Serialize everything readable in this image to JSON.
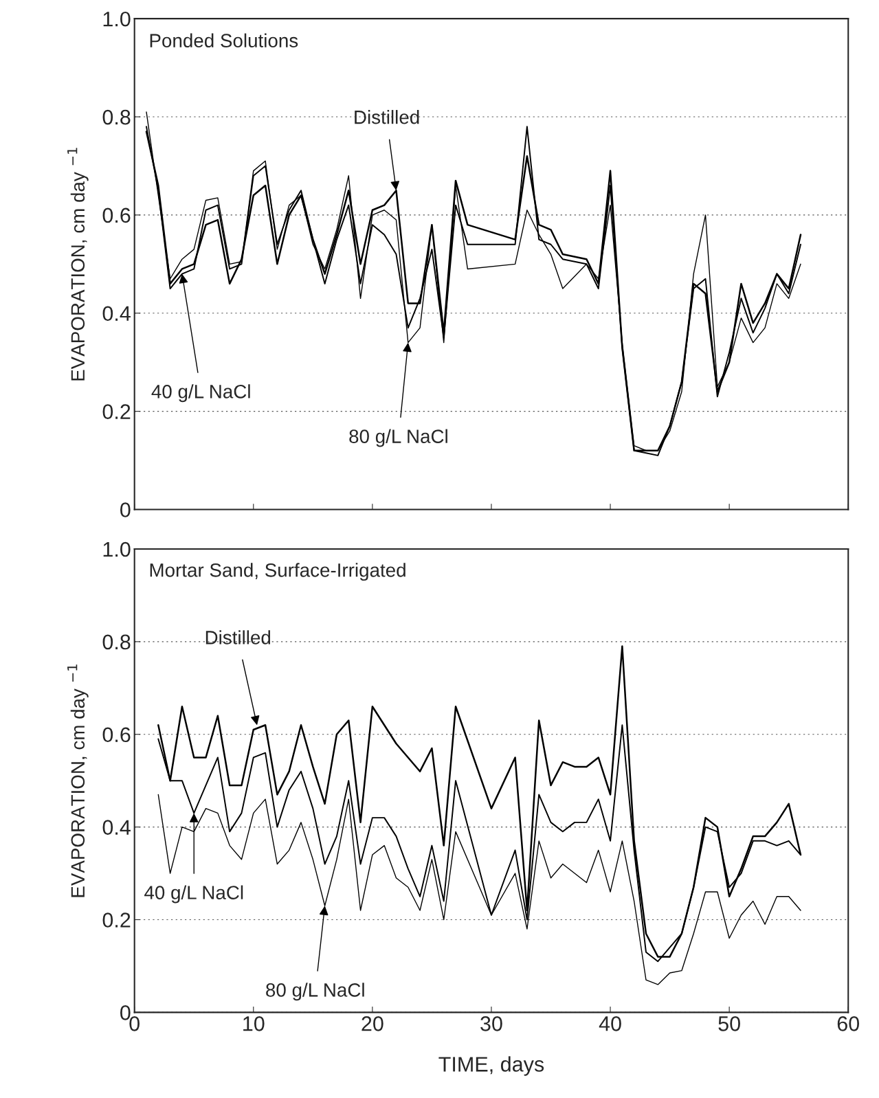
{
  "chart_data": [
    {
      "type": "line",
      "title": "Ponded Solutions",
      "ylabel": "EVAPORATION, cm day $^{−1}$",
      "xlim": [
        0,
        60
      ],
      "xticks": [
        0,
        10,
        20,
        30,
        40,
        50,
        60
      ],
      "ylim": [
        0,
        1.0
      ],
      "yticks": [
        0,
        0.2,
        0.4,
        0.6,
        0.8,
        {
          "value": 1.0,
          "label": "1.0"
        }
      ],
      "tick_labels": "y",
      "grid": "y",
      "line_style": "solid",
      "series": [
        {
          "color": "#000000",
          "x": [
            1,
            2,
            3,
            4,
            5,
            6,
            7,
            8,
            9,
            10,
            11,
            12,
            13,
            14,
            15,
            16,
            17,
            18,
            19,
            20,
            21,
            22,
            23,
            24,
            25,
            26,
            27,
            28,
            32,
            33,
            34,
            35,
            36,
            38,
            39,
            40,
            41,
            42,
            43,
            44,
            45,
            46,
            47,
            48,
            49,
            50,
            51,
            52,
            53,
            54,
            55,
            56
          ],
          "values": [
            0.77,
            0.66,
            0.46,
            0.49,
            0.5,
            0.58,
            0.59,
            0.46,
            0.51,
            0.64,
            0.66,
            0.5,
            0.6,
            0.64,
            0.55,
            0.48,
            0.56,
            0.65,
            0.5,
            0.61,
            0.62,
            0.65,
            0.42,
            0.42,
            0.58,
            0.36,
            0.67,
            0.58,
            0.55,
            0.72,
            0.58,
            0.57,
            0.52,
            0.51,
            0.46,
            0.69,
            0.33,
            0.12,
            0.12,
            0.12,
            0.17,
            0.26,
            0.46,
            0.44,
            0.24,
            0.3,
            0.46,
            0.38,
            0.42,
            0.48,
            0.45,
            0.56
          ]
        },
        {
          "color": "#000000",
          "x": [
            1,
            2,
            3,
            4,
            5,
            6,
            7,
            8,
            9,
            10,
            11,
            12,
            13,
            14,
            15,
            16,
            17,
            18,
            19,
            20,
            21,
            22,
            23,
            24,
            25,
            26,
            27,
            28,
            32,
            33,
            34,
            35,
            36,
            38,
            39,
            40,
            41,
            42,
            43,
            44,
            45,
            46,
            47,
            48,
            49,
            50,
            51,
            52,
            53,
            54,
            55,
            56
          ],
          "values": [
            0.78,
            0.65,
            0.45,
            0.48,
            0.49,
            0.61,
            0.62,
            0.49,
            0.5,
            0.68,
            0.7,
            0.54,
            0.61,
            0.65,
            0.55,
            0.46,
            0.55,
            0.62,
            0.46,
            0.58,
            0.56,
            0.52,
            0.37,
            0.43,
            0.53,
            0.35,
            0.62,
            0.54,
            0.54,
            0.78,
            0.55,
            0.54,
            0.51,
            0.5,
            0.45,
            0.66,
            0.33,
            0.12,
            0.115,
            0.11,
            0.17,
            0.26,
            0.45,
            0.47,
            0.23,
            0.32,
            0.43,
            0.36,
            0.41,
            0.48,
            0.44,
            0.54
          ]
        },
        {
          "color": "#000000",
          "x": [
            1,
            2,
            3,
            4,
            5,
            6,
            7,
            8,
            9,
            10,
            11,
            12,
            13,
            14,
            15,
            16,
            17,
            18,
            19,
            20,
            21,
            22,
            23,
            24,
            25,
            26,
            27,
            28,
            32,
            33,
            34,
            35,
            36,
            38,
            39,
            40,
            41,
            42,
            43,
            44,
            45,
            46,
            47,
            48,
            49,
            50,
            51,
            52,
            53,
            54,
            55,
            56
          ],
          "values": [
            0.81,
            0.64,
            0.47,
            0.51,
            0.53,
            0.63,
            0.635,
            0.5,
            0.505,
            0.69,
            0.71,
            0.53,
            0.62,
            0.64,
            0.54,
            0.49,
            0.57,
            0.68,
            0.43,
            0.6,
            0.61,
            0.59,
            0.34,
            0.37,
            0.58,
            0.34,
            0.66,
            0.49,
            0.5,
            0.61,
            0.56,
            0.52,
            0.45,
            0.5,
            0.47,
            0.62,
            0.34,
            0.13,
            0.12,
            0.12,
            0.16,
            0.24,
            0.48,
            0.6,
            0.25,
            0.3,
            0.39,
            0.34,
            0.37,
            0.46,
            0.43,
            0.5
          ]
        }
      ],
      "annotations": [
        {
          "text": "Distilled",
          "x": 22,
          "y": 0.65
        },
        {
          "text": "40 g/L NaCl",
          "x": 4,
          "y": 0.48
        },
        {
          "text": "80 g/L NaCl",
          "x": 23,
          "y": 0.34
        }
      ]
    },
    {
      "type": "line",
      "title": "Mortar Sand, Surface-Irrigated",
      "xlabel": "TIME, days",
      "ylabel": "EVAPORATION, cm day $^{−1}$",
      "xlim": [
        0,
        60
      ],
      "xticks": [
        0,
        10,
        20,
        30,
        40,
        50,
        60
      ],
      "ylim": [
        0,
        1.0
      ],
      "yticks": [
        0,
        0.2,
        0.4,
        0.6,
        0.8,
        {
          "value": 1.0,
          "label": "1.0"
        }
      ],
      "grid": "y",
      "line_style": "solid",
      "series": [
        {
          "color": "#000000",
          "x": [
            2,
            3,
            4,
            5,
            6,
            7,
            8,
            9,
            10,
            11,
            12,
            13,
            14,
            15,
            16,
            17,
            18,
            19,
            20,
            21,
            22,
            23,
            24,
            25,
            26,
            27,
            30,
            32,
            33,
            34,
            35,
            36,
            37,
            38,
            39,
            40,
            41,
            42,
            43,
            44,
            45,
            46,
            47,
            48,
            49,
            50,
            51,
            52,
            53,
            54,
            55,
            56
          ],
          "values": [
            0.62,
            0.5,
            0.66,
            0.55,
            0.55,
            0.64,
            0.49,
            0.49,
            0.61,
            0.62,
            0.47,
            0.52,
            0.62,
            0.53,
            0.45,
            0.6,
            0.63,
            0.41,
            0.66,
            0.62,
            0.58,
            0.55,
            0.52,
            0.57,
            0.36,
            0.66,
            0.44,
            0.55,
            0.22,
            0.63,
            0.49,
            0.54,
            0.53,
            0.53,
            0.55,
            0.47,
            0.79,
            0.37,
            0.17,
            0.12,
            0.12,
            0.17,
            0.27,
            0.42,
            0.4,
            0.25,
            0.31,
            0.38,
            0.38,
            0.41,
            0.45,
            0.34
          ]
        },
        {
          "color": "#000000",
          "x": [
            2,
            3,
            4,
            5,
            6,
            7,
            8,
            9,
            10,
            11,
            12,
            13,
            14,
            15,
            16,
            17,
            18,
            19,
            20,
            21,
            22,
            23,
            24,
            25,
            26,
            27,
            30,
            32,
            33,
            34,
            35,
            36,
            37,
            38,
            39,
            40,
            41,
            42,
            43,
            44,
            45,
            46,
            47,
            48,
            49,
            50,
            51,
            52,
            53,
            54,
            55,
            56
          ],
          "values": [
            0.59,
            0.5,
            0.5,
            0.43,
            0.49,
            0.55,
            0.39,
            0.43,
            0.55,
            0.56,
            0.4,
            0.48,
            0.52,
            0.44,
            0.32,
            0.38,
            0.5,
            0.32,
            0.42,
            0.42,
            0.38,
            0.31,
            0.25,
            0.36,
            0.24,
            0.5,
            0.21,
            0.35,
            0.2,
            0.47,
            0.41,
            0.39,
            0.41,
            0.41,
            0.46,
            0.37,
            0.62,
            0.35,
            0.13,
            0.11,
            0.14,
            0.17,
            0.27,
            0.4,
            0.39,
            0.27,
            0.3,
            0.37,
            0.37,
            0.36,
            0.37,
            0.34
          ]
        },
        {
          "color": "#000000",
          "x": [
            2,
            3,
            4,
            5,
            6,
            7,
            8,
            9,
            10,
            11,
            12,
            13,
            14,
            15,
            16,
            17,
            18,
            19,
            20,
            21,
            22,
            23,
            24,
            25,
            26,
            27,
            30,
            32,
            33,
            34,
            35,
            36,
            37,
            38,
            39,
            40,
            41,
            42,
            43,
            44,
            45,
            46,
            47,
            48,
            49,
            50,
            51,
            52,
            53,
            54,
            55,
            56
          ],
          "values": [
            0.47,
            0.3,
            0.4,
            0.39,
            0.44,
            0.43,
            0.36,
            0.33,
            0.43,
            0.46,
            0.32,
            0.35,
            0.41,
            0.33,
            0.23,
            0.33,
            0.46,
            0.22,
            0.34,
            0.36,
            0.29,
            0.27,
            0.22,
            0.33,
            0.2,
            0.39,
            0.21,
            0.3,
            0.18,
            0.37,
            0.29,
            0.32,
            0.3,
            0.28,
            0.35,
            0.26,
            0.37,
            0.24,
            0.07,
            0.06,
            0.085,
            0.09,
            0.17,
            0.26,
            0.26,
            0.16,
            0.21,
            0.24,
            0.19,
            0.25,
            0.25,
            0.22
          ]
        }
      ],
      "annotations": [
        {
          "text": "Distilled",
          "x": 10.3,
          "y": 0.62
        },
        {
          "text": "40 g/L NaCl",
          "x": 5,
          "y": 0.43
        },
        {
          "text": "80 g/L NaCl",
          "x": 16,
          "y": 0.23
        }
      ]
    }
  ]
}
